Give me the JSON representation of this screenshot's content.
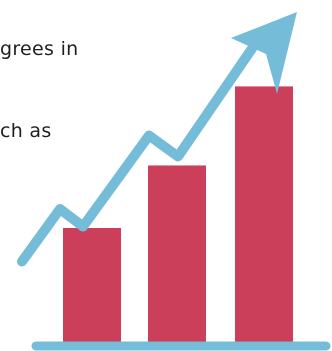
{
  "text": {
    "line_1": "grees in",
    "line_2": "ch as"
  },
  "colors": {
    "bar": "#cc3f5a",
    "arrow": "#74bcd8",
    "baseline": "#74bcd8",
    "text": "#1f1f1f",
    "background": "#ffffff"
  },
  "chart_data": {
    "type": "bar",
    "categories": [
      "",
      "",
      ""
    ],
    "values": [
      1,
      1.53,
      2.2
    ],
    "title": "",
    "xlabel": "",
    "ylabel": "",
    "grid": false,
    "legend": "none",
    "trend_arrow": {
      "type": "line",
      "direction": "up",
      "values": [
        0.55,
        1.3,
        1.05,
        2.35,
        2.05,
        3.8
      ]
    }
  }
}
